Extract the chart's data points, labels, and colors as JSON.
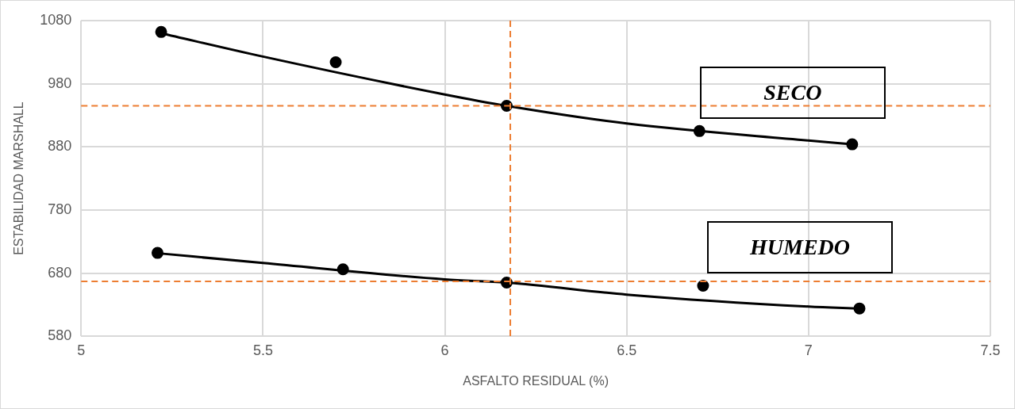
{
  "chart_data": {
    "type": "scatter",
    "xlabel": "ASFALTO RESIDUAL (%)",
    "ylabel": "ESTABILIDAD MARSHALL",
    "x": [
      5.22,
      5.7,
      6.17,
      6.7,
      7.12
    ],
    "series": [
      {
        "name": "SECO",
        "color": "#000000",
        "values": [
          1062,
          1014,
          945,
          905,
          884
        ]
      },
      {
        "name": "HUMEDO",
        "color": "#000000",
        "x": [
          5.21,
          5.72,
          6.17,
          6.71,
          7.14
        ],
        "values": [
          712,
          686,
          665,
          660,
          624
        ]
      },
      {
        "type": "line",
        "color": "#000000",
        "marker": "none",
        "x": [
          5.22,
          5.5,
          6.0,
          6.17,
          6.5,
          7.0,
          7.12
        ],
        "values": [
          1060,
          1023,
          963,
          945,
          917,
          890,
          884
        ]
      },
      {
        "type": "line",
        "color": "#000000",
        "marker": "none",
        "x": [
          5.22,
          5.5,
          6.0,
          6.17,
          6.5,
          7.0,
          7.14
        ],
        "values": [
          711,
          696,
          670,
          665,
          646,
          627,
          624
        ]
      }
    ],
    "xlim": [
      5,
      7.5
    ],
    "xticks": [
      5,
      5.5,
      6,
      6.5,
      7,
      7.5
    ],
    "ylim": [
      580,
      1080
    ],
    "yticks": [
      580,
      680,
      780,
      880,
      980,
      1080
    ],
    "ref_lines": [
      {
        "axis": "y",
        "value": 945,
        "color": "#ed7d31",
        "line_style": "dashed"
      },
      {
        "axis": "y",
        "value": 667,
        "color": "#ed7d31",
        "line_style": "dashed"
      },
      {
        "axis": "x",
        "value": 6.18,
        "color": "#ed7d31",
        "line_style": "dashed"
      }
    ],
    "grid": true,
    "legend": false,
    "marker": "circle"
  }
}
